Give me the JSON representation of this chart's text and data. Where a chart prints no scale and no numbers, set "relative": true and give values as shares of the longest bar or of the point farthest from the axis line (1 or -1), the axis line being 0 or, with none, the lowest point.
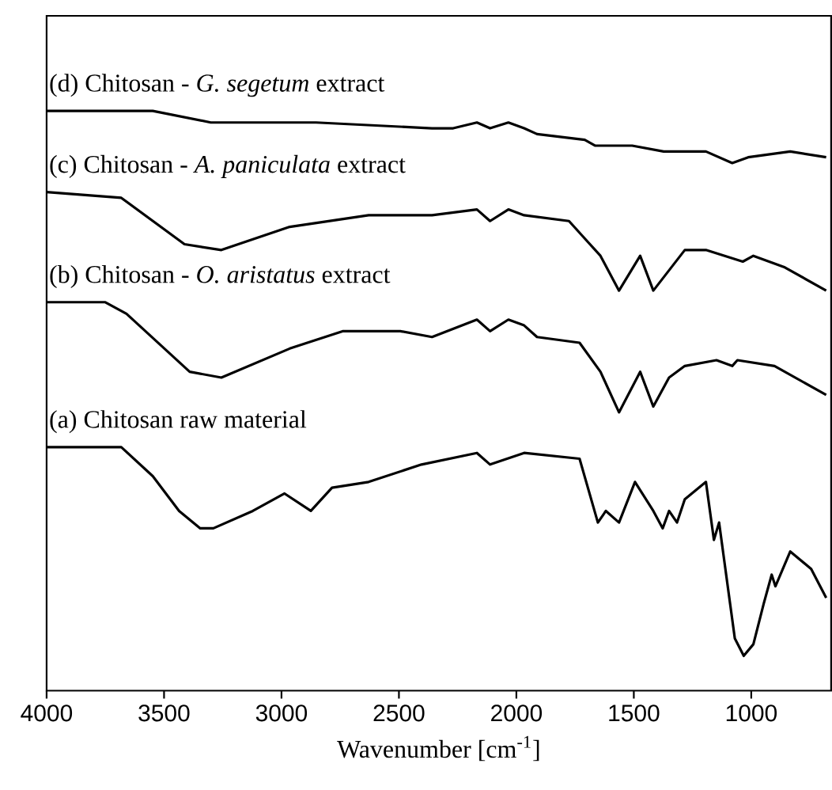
{
  "chart_data": {
    "type": "line",
    "relative": true,
    "xlabel": "Wavenumber [cm$^{-1}$]",
    "xlim": [
      4000,
      660
    ],
    "xticks": [
      4000,
      3500,
      3000,
      2500,
      2000,
      1500,
      1000
    ],
    "tick_labels": "x",
    "marker": "none",
    "line_style": "solid",
    "series": [
      {
        "name": "(a) Chitosan raw material",
        "color": "#000000",
        "x": [
          4000,
          3682,
          3548,
          3436,
          3346,
          3290,
          3122,
          2987,
          2875,
          2785,
          2629,
          2404,
          2168,
          2112,
          1967,
          1731,
          1653,
          1619,
          1563,
          1495,
          1417,
          1377,
          1350,
          1316,
          1283,
          1193,
          1159,
          1137,
          1070,
          1032,
          991,
          947,
          913,
          897,
          834,
          745,
          681
        ],
        "values": [
          0.42,
          0.42,
          0.37,
          0.31,
          0.28,
          0.28,
          0.31,
          0.34,
          0.31,
          0.35,
          0.36,
          0.39,
          0.41,
          0.39,
          0.41,
          0.4,
          0.29,
          0.31,
          0.29,
          0.36,
          0.31,
          0.28,
          0.31,
          0.29,
          0.33,
          0.36,
          0.26,
          0.29,
          0.09,
          0.06,
          0.08,
          0.15,
          0.2,
          0.18,
          0.24,
          0.21,
          0.16
        ]
      },
      {
        "name": "(b) Chitosan - *O. aristatus* extract",
        "color": "#000000",
        "x": [
          4000,
          3750,
          3660,
          3391,
          3256,
          2965,
          2740,
          2494,
          2359,
          2168,
          2112,
          2034,
          1967,
          1912,
          1731,
          1642,
          1563,
          1473,
          1417,
          1350,
          1283,
          1148,
          1081,
          1059,
          901,
          681
        ],
        "values": [
          0.67,
          0.67,
          0.65,
          0.55,
          0.54,
          0.59,
          0.62,
          0.62,
          0.61,
          0.64,
          0.62,
          0.64,
          0.63,
          0.61,
          0.6,
          0.55,
          0.48,
          0.55,
          0.49,
          0.54,
          0.56,
          0.57,
          0.56,
          0.57,
          0.56,
          0.51
        ]
      },
      {
        "name": "(c) Chitosan - *A. paniculata* extract",
        "color": "#000000",
        "x": [
          4000,
          3682,
          3413,
          3256,
          2965,
          2629,
          2359,
          2168,
          2112,
          2034,
          1967,
          1776,
          1709,
          1642,
          1563,
          1473,
          1417,
          1283,
          1193,
          1036,
          991,
          857,
          681
        ],
        "values": [
          0.86,
          0.85,
          0.77,
          0.76,
          0.8,
          0.82,
          0.82,
          0.83,
          0.81,
          0.83,
          0.82,
          0.81,
          0.78,
          0.75,
          0.69,
          0.75,
          0.69,
          0.76,
          0.76,
          0.74,
          0.75,
          0.73,
          0.69
        ]
      },
      {
        "name": "(d) Chitosan - *G. segetum* extract",
        "color": "#000000",
        "x": [
          4000,
          3548,
          3301,
          2853,
          2359,
          2269,
          2168,
          2112,
          2034,
          1967,
          1912,
          1709,
          1664,
          1507,
          1373,
          1283,
          1193,
          1081,
          1013,
          834,
          681
        ],
        "values": [
          1.0,
          1.0,
          0.98,
          0.98,
          0.97,
          0.97,
          0.98,
          0.97,
          0.98,
          0.97,
          0.96,
          0.95,
          0.94,
          0.94,
          0.93,
          0.93,
          0.93,
          0.91,
          0.92,
          0.93,
          0.92
        ]
      }
    ]
  }
}
